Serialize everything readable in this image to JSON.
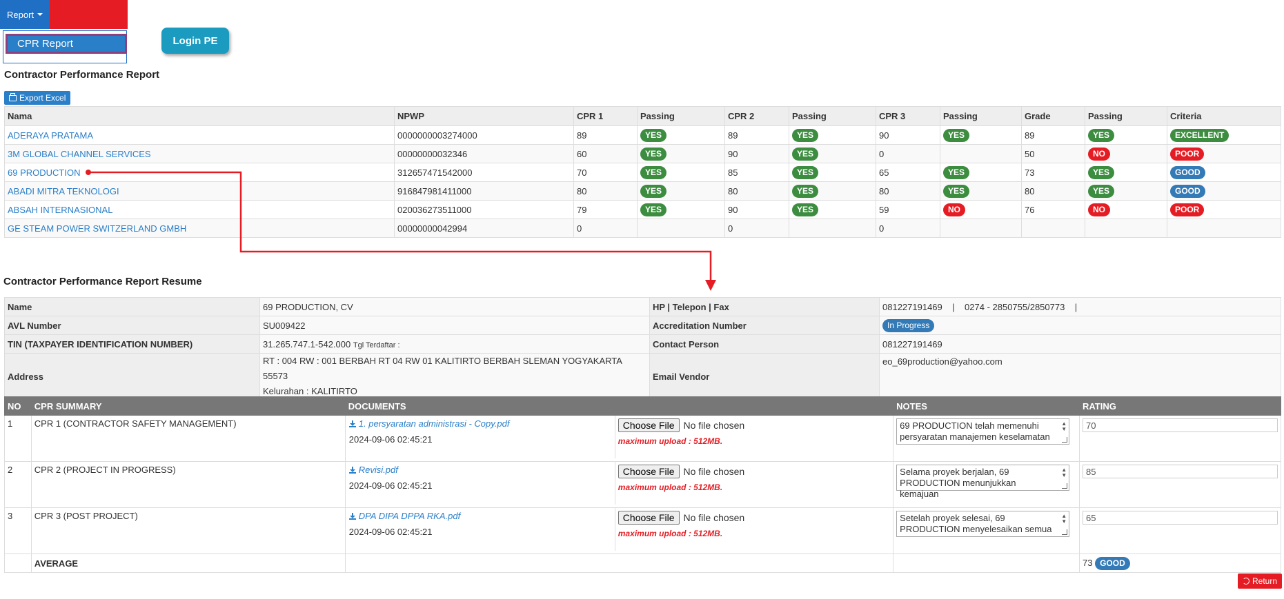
{
  "menu": {
    "report_label": "Report",
    "dropdown_item": "CPR Report",
    "login_pe": "Login PE"
  },
  "report": {
    "title": "Contractor Performance Report",
    "export_label": "Export Excel",
    "headers": [
      "Nama",
      "NPWP",
      "CPR 1",
      "Passing",
      "CPR 2",
      "Passing",
      "CPR 3",
      "Passing",
      "Grade",
      "Passing",
      "Criteria"
    ],
    "rows": [
      {
        "nama": "ADERAYA PRATAMA",
        "npwp": "0000000003274000",
        "cpr1": "89",
        "p1": "YES",
        "cpr2": "89",
        "p2": "YES",
        "cpr3": "90",
        "p3": "YES",
        "grade": "89",
        "pg": "YES",
        "criteria": "EXCELLENT"
      },
      {
        "nama": "3M GLOBAL CHANNEL SERVICES",
        "npwp": "00000000032346",
        "cpr1": "60",
        "p1": "YES",
        "cpr2": "90",
        "p2": "YES",
        "cpr3": "0",
        "p3": "",
        "grade": "50",
        "pg": "NO",
        "criteria": "POOR"
      },
      {
        "nama": "69 PRODUCTION",
        "npwp": "312657471542000",
        "cpr1": "70",
        "p1": "YES",
        "cpr2": "85",
        "p2": "YES",
        "cpr3": "65",
        "p3": "YES",
        "grade": "73",
        "pg": "YES",
        "criteria": "GOOD"
      },
      {
        "nama": "ABADI MITRA TEKNOLOGI",
        "npwp": "916847981411000",
        "cpr1": "80",
        "p1": "YES",
        "cpr2": "80",
        "p2": "YES",
        "cpr3": "80",
        "p3": "YES",
        "grade": "80",
        "pg": "YES",
        "criteria": "GOOD"
      },
      {
        "nama": "ABSAH INTERNASIONAL",
        "npwp": "020036273511000",
        "cpr1": "79",
        "p1": "YES",
        "cpr2": "90",
        "p2": "YES",
        "cpr3": "59",
        "p3": "NO",
        "grade": "76",
        "pg": "NO",
        "criteria": "POOR"
      },
      {
        "nama": "GE STEAM POWER SWITZERLAND GMBH",
        "npwp": "00000000042994",
        "cpr1": "0",
        "p1": "",
        "cpr2": "0",
        "p2": "",
        "cpr3": "0",
        "p3": "",
        "grade": "",
        "pg": "",
        "criteria": ""
      }
    ]
  },
  "resume": {
    "title": "Contractor Performance Report Resume",
    "name_label": "Name",
    "name_value": "69 PRODUCTION, CV",
    "phone_label": "HP | Telepon | Fax",
    "phone_value": "081227191469    |    0274 - 2850755/2850773    |",
    "avl_label": "AVL Number",
    "avl_value": "SU009422",
    "accreditation_label": "Accreditation Number",
    "accreditation_value": "In Progress",
    "tin_label": "TIN (TAXPAYER IDENTIFICATION NUMBER)",
    "tin_value": "31.265.747.1-542.000",
    "tin_extra": "Tgl Terdaftar :",
    "contact_label": "Contact Person",
    "contact_value": "081227191469",
    "address_label": "Address",
    "address_line1": "RT : 004 RW : 001 BERBAH RT 04 RW 01 KALITIRTO BERBAH SLEMAN YOGYAKARTA 55573",
    "address_line2": "Kelurahan : KALITIRTO",
    "email_label": "Email Vendor",
    "email_value": "eo_69production@yahoo.com"
  },
  "summary": {
    "headers": {
      "no": "NO",
      "summary": "CPR SUMMARY",
      "documents": "DOCUMENTS",
      "notes": "NOTES",
      "rating": "RATING"
    },
    "choose_label": "Choose File",
    "no_file": "No file chosen",
    "max_upload": "maximum upload : 512MB.",
    "rows": [
      {
        "no": "1",
        "summary": "CPR 1 (CONTRACTOR SAFETY MANAGEMENT)",
        "doc": "1. persyaratan administrasi - Copy.pdf",
        "date": "2024-09-06 02:45:21",
        "notes": "69 PRODUCTION telah memenuhi persyaratan manajemen keselamatan",
        "rating": "70"
      },
      {
        "no": "2",
        "summary": "CPR 2 (PROJECT IN PROGRESS)",
        "doc": "Revisi.pdf",
        "date": "2024-09-06 02:45:21",
        "notes": "Selama proyek berjalan, 69 PRODUCTION menunjukkan kemajuan",
        "rating": "85"
      },
      {
        "no": "3",
        "summary": "CPR 3 (POST PROJECT)",
        "doc": "DPA DIPA DPPA RKA.pdf",
        "date": "2024-09-06 02:45:21",
        "notes": "Setelah proyek selesai, 69 PRODUCTION menyelesaikan semua",
        "rating": "65"
      }
    ],
    "average_label": "AVERAGE",
    "average_value": "73",
    "average_badge": "GOOD"
  },
  "return_label": "Return",
  "colors": {
    "accent": "#2a7fc9",
    "yes": "#3c8d40",
    "no": "#e51c23",
    "good": "#337ab7"
  }
}
